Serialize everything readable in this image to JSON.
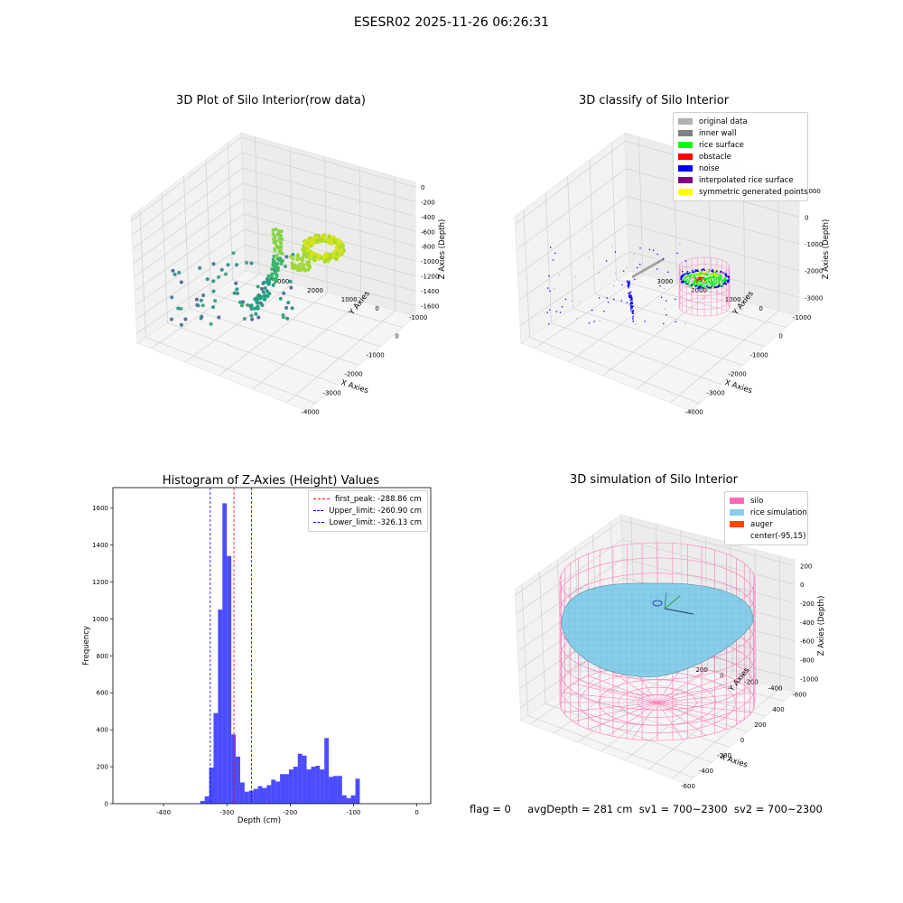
{
  "figure": {
    "title": "ESESR02 2025-11-26 06:26:31"
  },
  "panels": {
    "raw": {
      "title": "3D Plot of Silo Interior(row data)",
      "xlabel": "X Axies",
      "ylabel": "Y Axies",
      "zlabel": "Z Axies (Depth)",
      "xticks": [
        "-4000",
        "-3000",
        "-2000",
        "-1000",
        "0"
      ],
      "yticks": [
        "-1000",
        "0",
        "1000",
        "2000",
        "3000"
      ],
      "zticks": [
        "0",
        "-200",
        "-400",
        "-600",
        "-800",
        "-1000",
        "-1200",
        "-1400",
        "-1600"
      ]
    },
    "classify": {
      "title": "3D classify of Silo Interior",
      "xlabel": "X Axies",
      "ylabel": "Y Axies",
      "zlabel": "Z Axies (Depth)",
      "xticks": [
        "-4000",
        "-3000",
        "-2000",
        "-1000",
        "0"
      ],
      "yticks": [
        "-1000",
        "0",
        "1000",
        "2000",
        "3000"
      ],
      "zticks": [
        "1000",
        "0",
        "-1000",
        "-2000",
        "-3000"
      ],
      "legend": [
        {
          "label": "original data",
          "color": "#b0b0b0"
        },
        {
          "label": "inner wall",
          "color": "#808080"
        },
        {
          "label": "rice surface",
          "color": "#00ff00"
        },
        {
          "label": "obstacle",
          "color": "#ff0000"
        },
        {
          "label": "noise",
          "color": "#0000ff"
        },
        {
          "label": "interpolated rice surface",
          "color": "#800080"
        },
        {
          "label": "symmetric generated points",
          "color": "#ffff00"
        }
      ]
    },
    "simulation": {
      "title": "3D simulation of Silo Interior",
      "xlabel": "X Axies",
      "ylabel": "Y Axies",
      "zlabel": "Z Axies (Depth)",
      "xticks": [
        "-600",
        "-400",
        "-200",
        "0",
        "200",
        "400"
      ],
      "yticks": [
        "-600",
        "-400",
        "-200",
        "0",
        "200",
        "400",
        "600"
      ],
      "zticks": [
        "200",
        "0",
        "-200",
        "-400",
        "-600",
        "-800",
        "-1000"
      ],
      "legend": [
        {
          "label": "silo",
          "color": "#ff69b4"
        },
        {
          "label": "rice simulation",
          "color": "#87ceeb"
        },
        {
          "label": "auger",
          "color": "#ff4500"
        },
        {
          "label": "center(-95,15)",
          "color": "#ffffff"
        }
      ]
    }
  },
  "status": {
    "flag": "flag = 0",
    "avg_depth": "avgDepth = 281 cm",
    "sv1": "sv1 = 700~2300",
    "sv2": "sv2 = 700~2300"
  },
  "chart_data": [
    {
      "type": "bar",
      "title": "Histogram of Z-Axies (Height) Values",
      "xlabel": "Depth (cm)",
      "ylabel": "Frequency",
      "xlim": [
        -480,
        22
      ],
      "ylim": [
        0,
        1710
      ],
      "bar_color": "#0000ff",
      "bin_width": 7,
      "xticks": [
        -400,
        -300,
        -200,
        -100,
        0
      ],
      "yticks": [
        0,
        200,
        400,
        600,
        800,
        1000,
        1200,
        1400,
        1600
      ],
      "bins": [
        {
          "x": -342,
          "y": 15
        },
        {
          "x": -335,
          "y": 40
        },
        {
          "x": -328,
          "y": 195
        },
        {
          "x": -321,
          "y": 490
        },
        {
          "x": -314,
          "y": 1050
        },
        {
          "x": -307,
          "y": 1625
        },
        {
          "x": -300,
          "y": 1340
        },
        {
          "x": -293,
          "y": 375
        },
        {
          "x": -286,
          "y": 255
        },
        {
          "x": -279,
          "y": 115
        },
        {
          "x": -272,
          "y": 65
        },
        {
          "x": -265,
          "y": 70
        },
        {
          "x": -258,
          "y": 80
        },
        {
          "x": -251,
          "y": 95
        },
        {
          "x": -244,
          "y": 85
        },
        {
          "x": -237,
          "y": 100
        },
        {
          "x": -230,
          "y": 130
        },
        {
          "x": -223,
          "y": 120
        },
        {
          "x": -216,
          "y": 160
        },
        {
          "x": -209,
          "y": 160
        },
        {
          "x": -202,
          "y": 185
        },
        {
          "x": -195,
          "y": 200
        },
        {
          "x": -188,
          "y": 270
        },
        {
          "x": -181,
          "y": 260
        },
        {
          "x": -174,
          "y": 185
        },
        {
          "x": -167,
          "y": 200
        },
        {
          "x": -160,
          "y": 205
        },
        {
          "x": -153,
          "y": 185
        },
        {
          "x": -146,
          "y": 355
        },
        {
          "x": -139,
          "y": 145
        },
        {
          "x": -132,
          "y": 150
        },
        {
          "x": -125,
          "y": 150
        },
        {
          "x": -118,
          "y": 45
        },
        {
          "x": -111,
          "y": 30
        },
        {
          "x": -104,
          "y": 45
        },
        {
          "x": -97,
          "y": 135
        }
      ],
      "vlines": [
        {
          "label": "first_peak: -288.86 cm",
          "x": -288.86,
          "color": "#ff0000"
        },
        {
          "label": "Upper_limit: -260.90 cm",
          "x": -260.9,
          "color": "#0000ff"
        },
        {
          "label": "Lower_limit: -326.13 cm",
          "x": -326.13,
          "color": "#0000ff"
        }
      ]
    }
  ]
}
